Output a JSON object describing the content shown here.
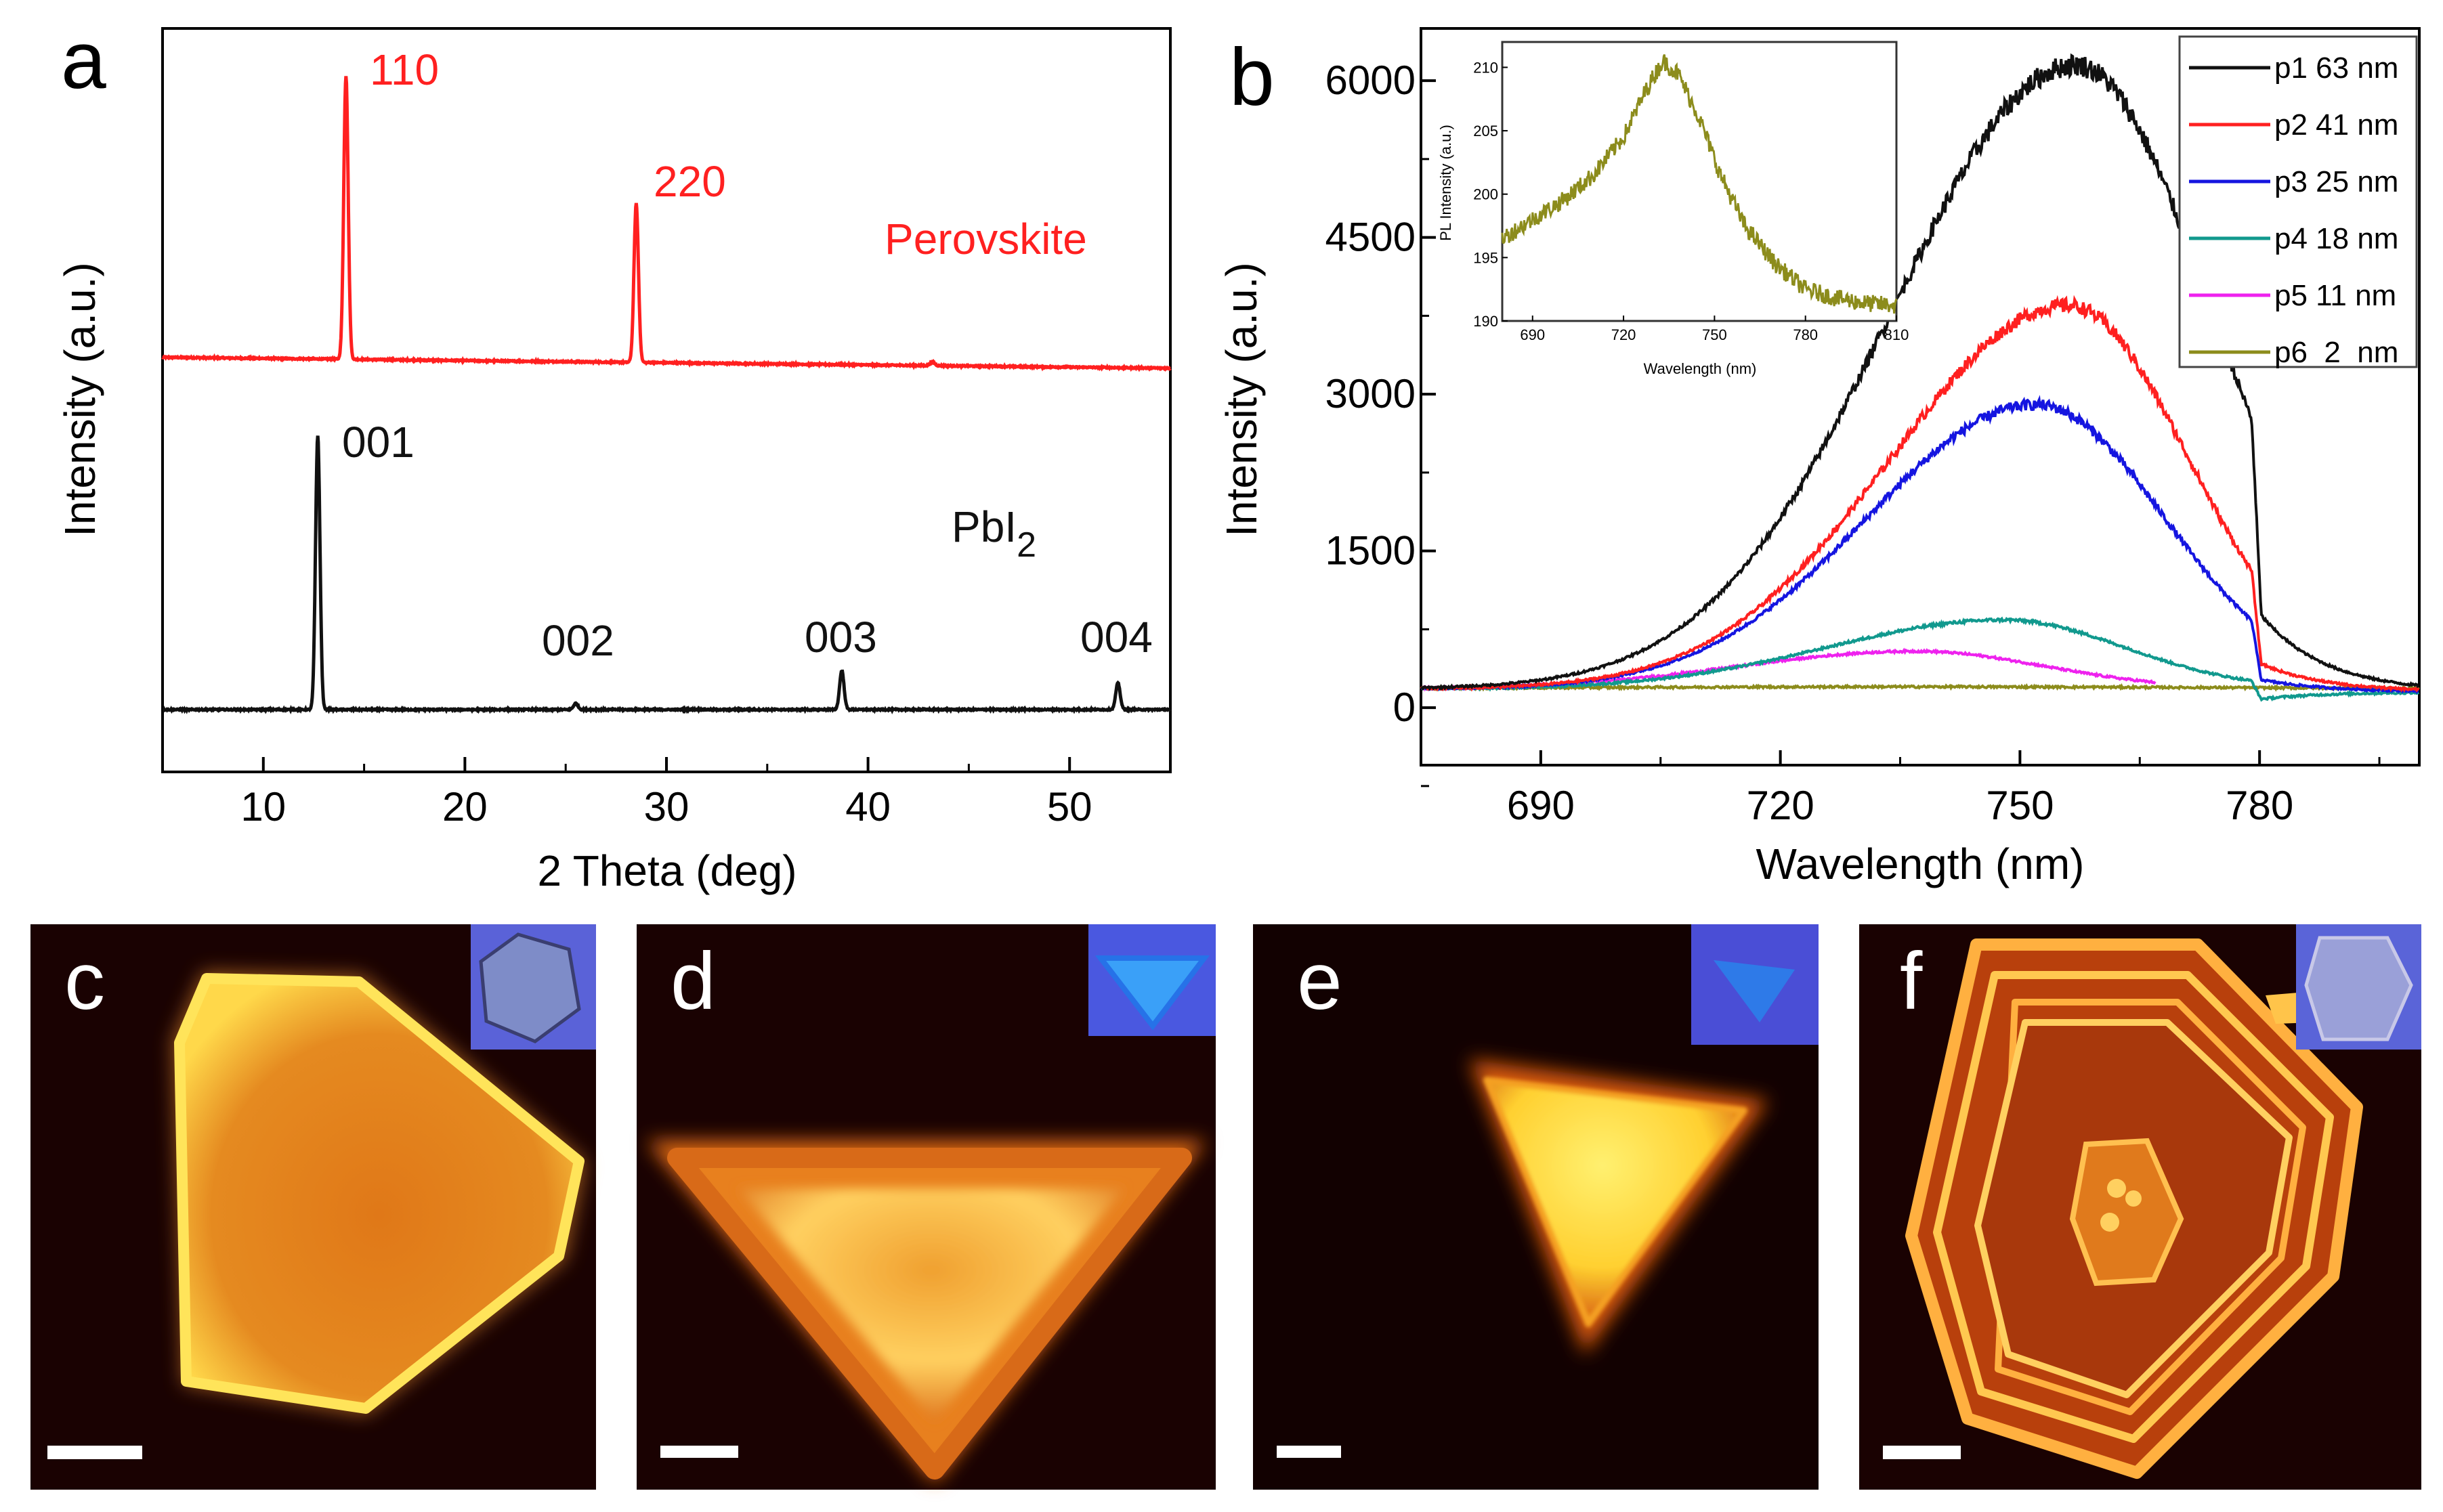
{
  "chart_data": [
    {
      "panel_label": "a",
      "type": "line",
      "xlabel": "2 Theta (deg)",
      "ylabel": "Intensity (a.u.)",
      "xlim": [
        5,
        55
      ],
      "xticks": [
        "10",
        "20",
        "30",
        "40",
        "50"
      ],
      "series": [
        {
          "name": "Perovskite",
          "color": "#ff2020",
          "baseline": 0.55,
          "slope": -0.00035,
          "peaks": [
            {
              "x": 14.1,
              "height": 9.1,
              "label": "110"
            },
            {
              "x": 28.5,
              "height": 5.1,
              "label": "220"
            },
            {
              "x": 43.2,
              "height": 0.12,
              "label": ""
            }
          ]
        },
        {
          "name": "PbI",
          "name_subscript": "2",
          "color": "#111111",
          "baseline": 0.0,
          "slope": 0.0,
          "peaks": [
            {
              "x": 12.7,
              "height": 8.8,
              "label": "001"
            },
            {
              "x": 25.5,
              "height": 0.2,
              "label": "002"
            },
            {
              "x": 38.7,
              "height": 1.25,
              "label": "003"
            },
            {
              "x": 52.4,
              "height": 0.85,
              "label": "004"
            }
          ]
        }
      ]
    },
    {
      "panel_label": "b",
      "type": "line",
      "xlabel": "Wavelength (nm)",
      "ylabel": "Intensity (a.u.)",
      "xlim": [
        675,
        800
      ],
      "ylim": [
        -550,
        6500
      ],
      "xticks": [
        "690",
        "720",
        "750",
        "780"
      ],
      "yticks": [
        "0",
        "1500",
        "3000",
        "4500",
        "6000"
      ],
      "legend_position": "top-right",
      "series": [
        {
          "name": "p1 63 nm",
          "color": "#111111",
          "peak_x": 757,
          "peak_y": 6150,
          "base": 180,
          "sigma_left": 23,
          "sigma_right": 17,
          "cut_x": 779,
          "tail_y": 150
        },
        {
          "name": "p2 41 nm",
          "color": "#ff2020",
          "peak_x": 756,
          "peak_y": 3850,
          "base": 180,
          "sigma_left": 22,
          "sigma_right": 15,
          "cut_x": 779,
          "tail_y": 150
        },
        {
          "name": "p3 25 nm",
          "color": "#1515e0",
          "peak_x": 752,
          "peak_y": 2900,
          "base": 180,
          "sigma_left": 21,
          "sigma_right": 16,
          "cut_x": 779,
          "tail_y": 150
        },
        {
          "name": "p4 18 nm",
          "color": "#11998e",
          "peak_x": 748,
          "peak_y": 840,
          "base": 180,
          "sigma_left": 22,
          "sigma_right": 15,
          "cut_x": 779,
          "tail_y": 150
        },
        {
          "name": "p5 11 nm",
          "color": "#ee22ee",
          "peak_x": 737,
          "peak_y": 540,
          "base": 180,
          "sigma_left": 22,
          "sigma_right": 16,
          "end_x": 767
        },
        {
          "name": "p6  2  nm",
          "color": "#8c8c1c",
          "peak_x": 735,
          "peak_y": 200,
          "base": 180,
          "sigma_left": 40,
          "sigma_right": 40
        }
      ],
      "inset": {
        "type": "line",
        "xlabel": "Wavelength (nm)",
        "ylabel": "PL Intensity (a.u.)",
        "xlim": [
          680,
          810
        ],
        "ylim": [
          190,
          212
        ],
        "xticks": [
          "690",
          "720",
          "750",
          "780",
          "810"
        ],
        "yticks": [
          "190",
          "195",
          "200",
          "205",
          "210"
        ],
        "series": [
          {
            "name": "p6",
            "color": "#8c8c1c",
            "points": [
              [
                680,
                196.5
              ],
              [
                690,
                198
              ],
              [
                700,
                199.5
              ],
              [
                710,
                201.5
              ],
              [
                720,
                204.5
              ],
              [
                728,
                208.5
              ],
              [
                733,
                210.5
              ],
              [
                738,
                209.5
              ],
              [
                745,
                206
              ],
              [
                752,
                201.5
              ],
              [
                760,
                197.5
              ],
              [
                770,
                194.5
              ],
              [
                780,
                192.5
              ],
              [
                790,
                191.8
              ],
              [
                800,
                191.4
              ],
              [
                810,
                191.2
              ]
            ]
          }
        ]
      }
    }
  ],
  "image_panels": [
    {
      "label": "c",
      "shape": "hexagon"
    },
    {
      "label": "d",
      "shape": "triangle-down"
    },
    {
      "label": "e",
      "shape": "triangle-small"
    },
    {
      "label": "f",
      "shape": "hexagon-layered"
    }
  ]
}
